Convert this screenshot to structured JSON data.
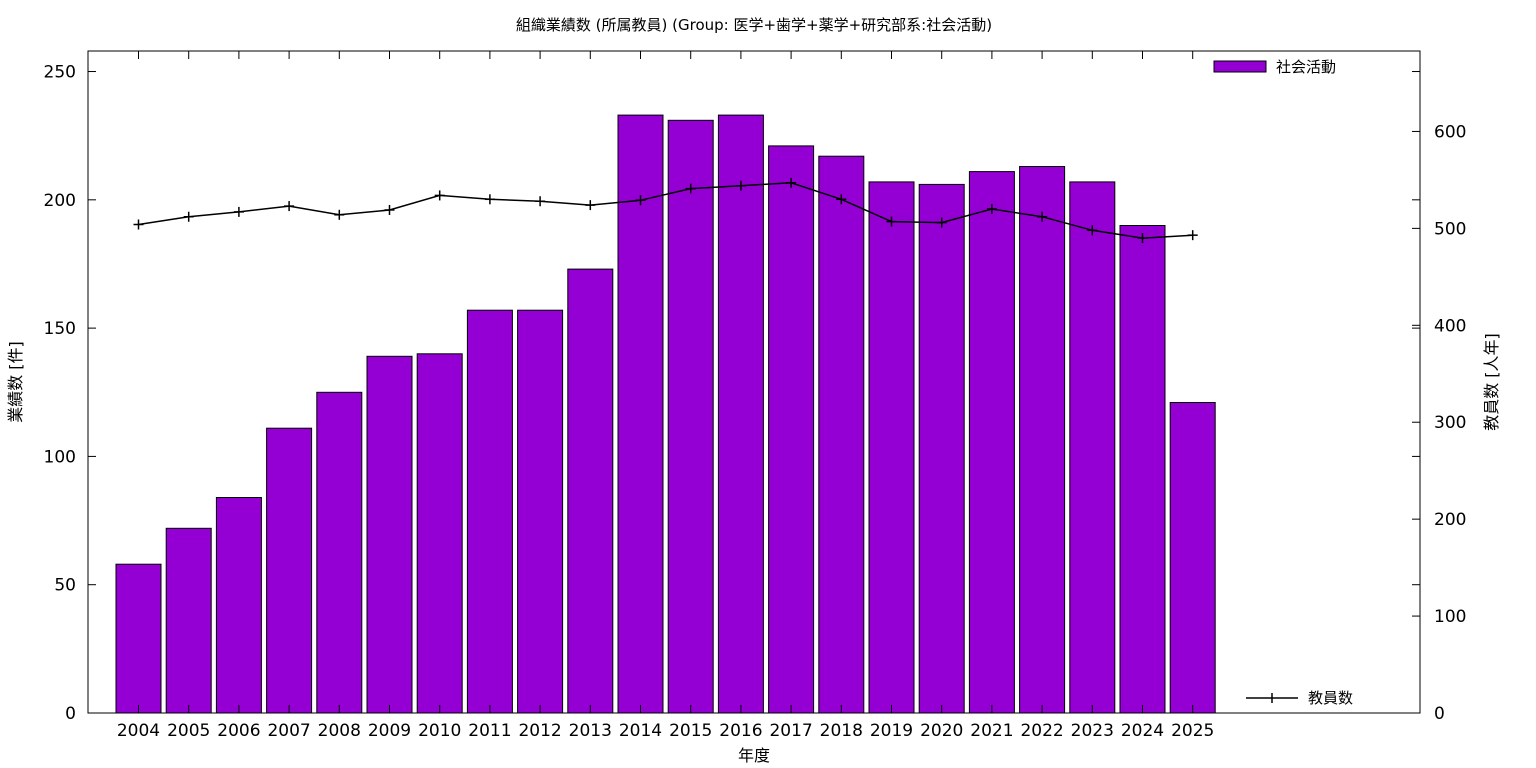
{
  "chart_data": {
    "type": "bar",
    "title": "組織業績数 (所属教員) (Group: 医学+歯学+薬学+研究部系:社会活動)",
    "xlabel": "年度",
    "ylabel": "業績数 [件]",
    "y2label": "教員数 [人年]",
    "categories": [
      "2004",
      "2005",
      "2006",
      "2007",
      "2008",
      "2009",
      "2010",
      "2011",
      "2012",
      "2013",
      "2014",
      "2015",
      "2016",
      "2017",
      "2018",
      "2019",
      "2020",
      "2021",
      "2022",
      "2023",
      "2024",
      "2025"
    ],
    "ylim": [
      0,
      258
    ],
    "y2lim": [
      0,
      683
    ],
    "yticks": [
      "0",
      "50",
      "100",
      "150",
      "200",
      "250"
    ],
    "y2ticks": [
      "0",
      "100",
      "200",
      "300",
      "400",
      "500",
      "600"
    ],
    "grid": false,
    "series": [
      {
        "name": "社会活動",
        "kind": "bar",
        "axis": "left",
        "color": "#9400d3",
        "values": [
          58,
          72,
          84,
          111,
          125,
          139,
          140,
          157,
          157,
          173,
          233,
          231,
          233,
          221,
          217,
          207,
          206,
          211,
          213,
          207,
          190,
          121
        ]
      },
      {
        "name": "教員数",
        "kind": "line",
        "axis": "right",
        "color": "#000000",
        "values": [
          504,
          512,
          517,
          523,
          514,
          519,
          534,
          530,
          528,
          524,
          529,
          541,
          544,
          547,
          530,
          507,
          506,
          520,
          512,
          498,
          490,
          493
        ]
      }
    ],
    "legend": {
      "bar_position": "top-right",
      "line_position": "bottom-right"
    }
  }
}
